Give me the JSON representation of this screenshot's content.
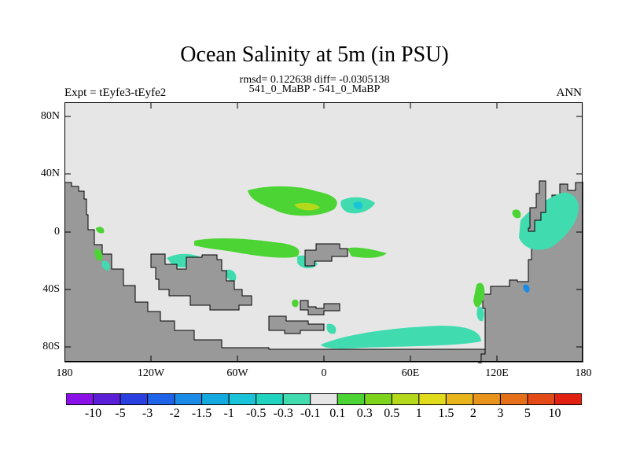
{
  "title": "Ocean Salinity at 5m (in PSU)",
  "stats_line": "rmsd= 0.122638 diff= -0.0305138",
  "case_line": "541_0_MaBP - 541_0_MaBP",
  "expt_label": "Expt = tEyfe3-tEyfe2",
  "season_label": "ANN",
  "y_ticks": [
    "80N",
    "40N",
    "0",
    "40S",
    "80S"
  ],
  "x_ticks": [
    "180",
    "120W",
    "60W",
    "0",
    "60E",
    "120E",
    "180"
  ],
  "colorbar": {
    "labels": [
      "-10",
      "-5",
      "-3",
      "-2",
      "-1.5",
      "-1",
      "-0.5",
      "-0.3",
      "-0.1",
      "0.1",
      "0.3",
      "0.5",
      "1",
      "1.5",
      "2",
      "3",
      "5",
      "10"
    ],
    "colors": [
      "#8a12e8",
      "#5a1fd6",
      "#2a3fe0",
      "#1f63e8",
      "#1a8ce8",
      "#14aae0",
      "#1ac4d8",
      "#20d4c0",
      "#40dcb0",
      "#e6e6e6",
      "#4cd434",
      "#7ed41c",
      "#b4d81a",
      "#e0dc1c",
      "#e8b41c",
      "#e8941c",
      "#e6701a",
      "#e44a18",
      "#e02010"
    ]
  },
  "map_colors": {
    "ocean": "#e6e6e6",
    "land": "#999999"
  }
}
